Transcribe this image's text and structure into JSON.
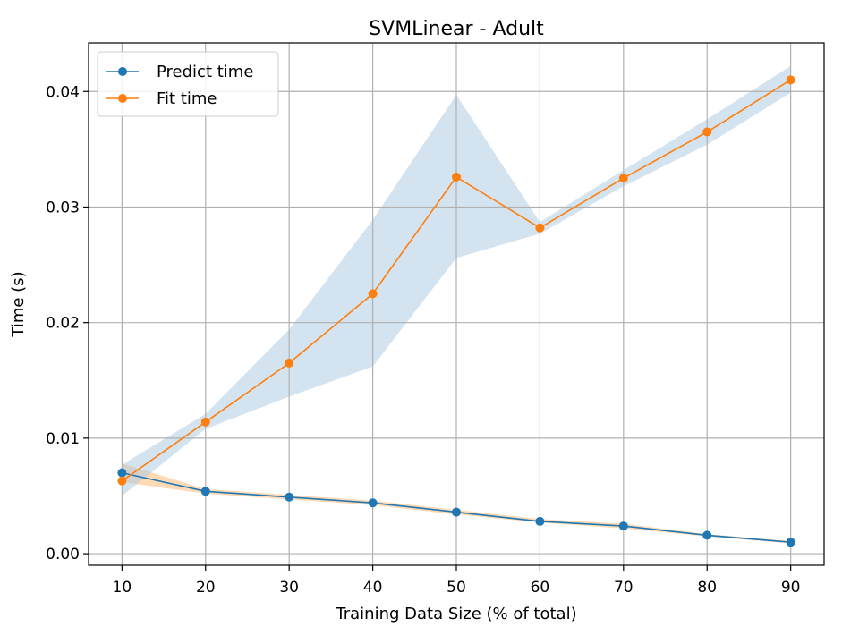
{
  "chart_data": {
    "type": "line",
    "title": "SVMLinear - Adult",
    "xlabel": "Training Data Size (% of total)",
    "ylabel": "Time (s)",
    "x": [
      10,
      20,
      30,
      40,
      50,
      60,
      70,
      80,
      90
    ],
    "xlim": [
      6.0,
      94.0
    ],
    "ylim": [
      -0.001,
      0.0442
    ],
    "xticks": [
      10,
      20,
      30,
      40,
      50,
      60,
      70,
      80,
      90
    ],
    "yticks": [
      0.0,
      0.01,
      0.02,
      0.03,
      0.04
    ],
    "ytick_labels": [
      "0.00",
      "0.01",
      "0.02",
      "0.03",
      "0.04"
    ],
    "grid": true,
    "legend_position": "top-left",
    "series": [
      {
        "name": "Predict time",
        "color": "#1f77b4",
        "values": [
          0.007,
          0.0054,
          0.0049,
          0.0044,
          0.0036,
          0.0028,
          0.0024,
          0.0016,
          0.001
        ],
        "band_lower": [
          0.0062,
          0.0052,
          0.0047,
          0.0042,
          0.0034,
          0.0027,
          0.0022,
          0.0015,
          0.0009
        ],
        "band_upper": [
          0.0078,
          0.0056,
          0.0051,
          0.0046,
          0.0038,
          0.003,
          0.0026,
          0.0017,
          0.0011
        ],
        "band_color": "#ffbb78"
      },
      {
        "name": "Fit time",
        "color": "#ff7f0e",
        "values": [
          0.0063,
          0.0114,
          0.0165,
          0.0225,
          0.0326,
          0.0282,
          0.0325,
          0.0365,
          0.041
        ],
        "band_lower": [
          0.005,
          0.0108,
          0.0136,
          0.0162,
          0.0256,
          0.0277,
          0.0318,
          0.0354,
          0.0399
        ],
        "band_upper": [
          0.0077,
          0.0121,
          0.0194,
          0.0289,
          0.0397,
          0.0287,
          0.0332,
          0.0376,
          0.0422
        ],
        "band_color": "#aac9e2"
      }
    ]
  }
}
